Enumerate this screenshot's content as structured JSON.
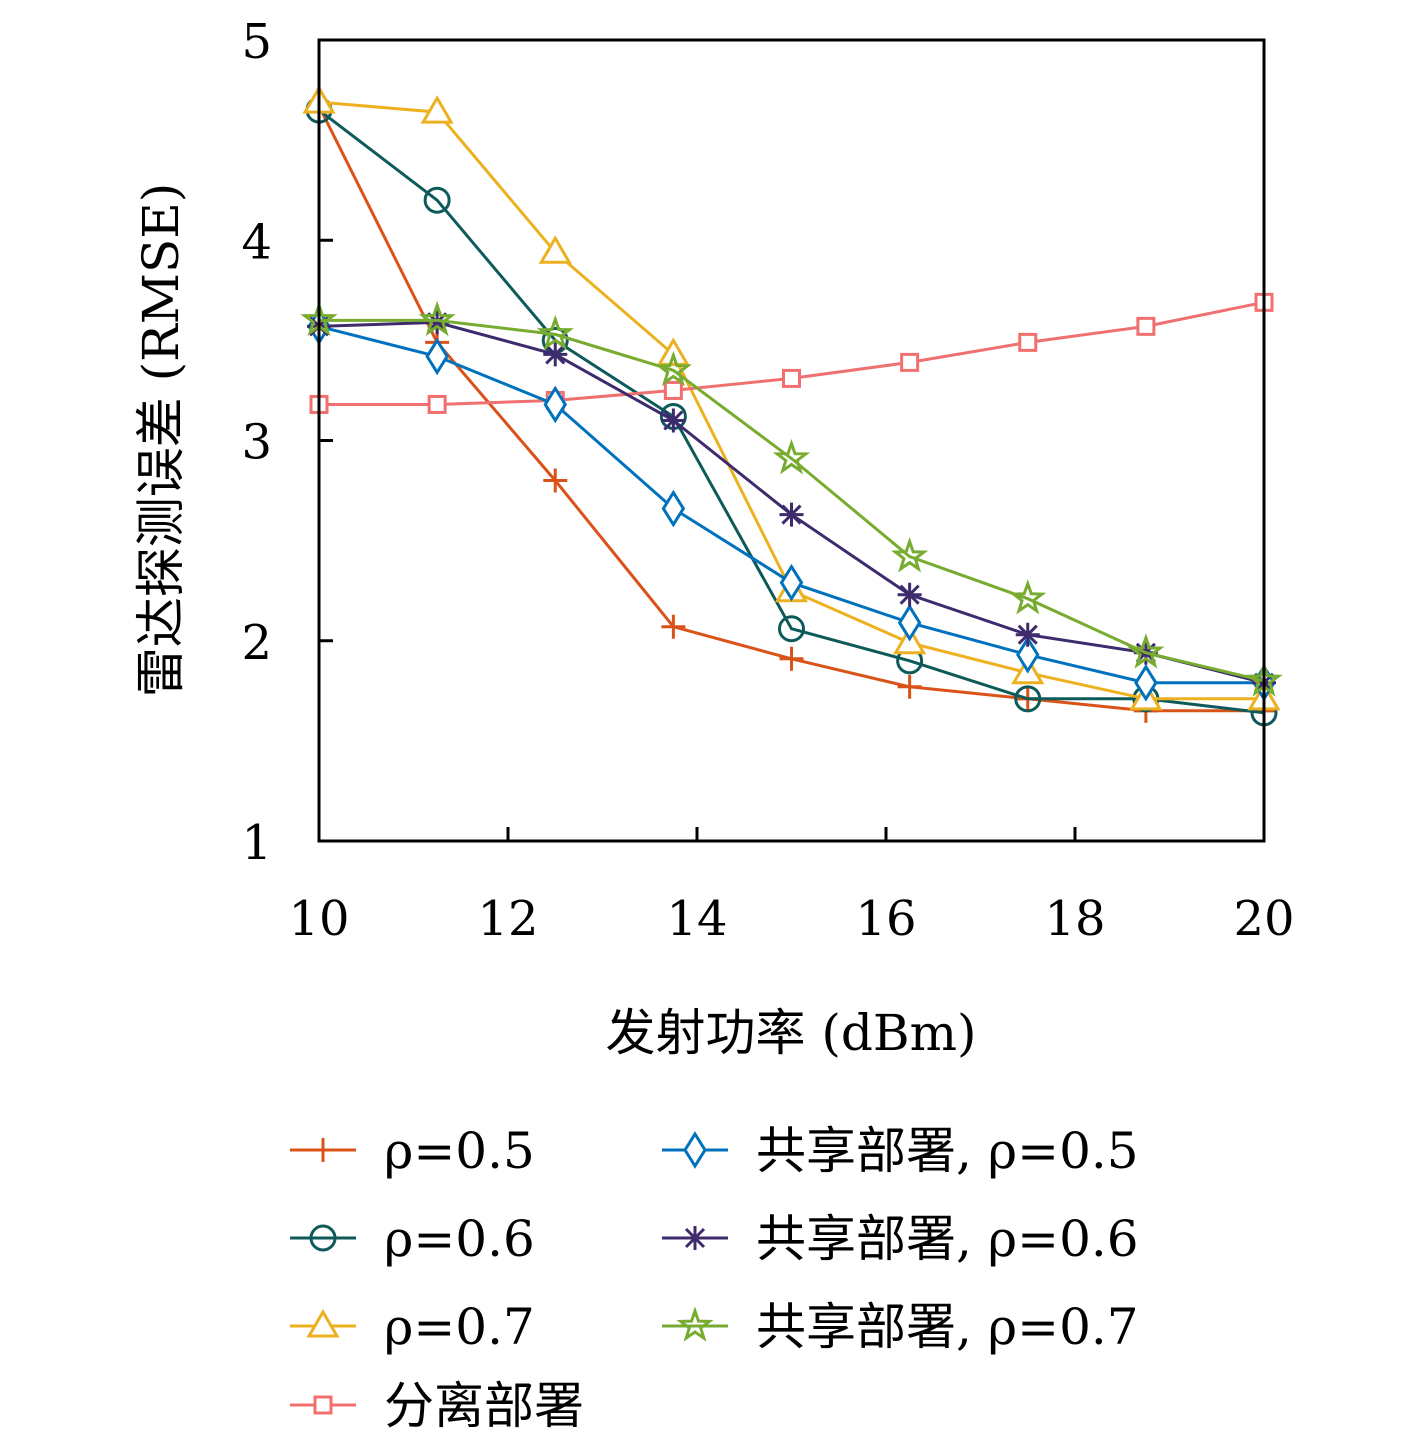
{
  "chart_data": {
    "type": "line",
    "title": "",
    "xlabel": "发射功率 (dBm)",
    "ylabel": "雷达探测误差 (RMSE)",
    "xlim": [
      10,
      20
    ],
    "ylim": [
      1,
      5
    ],
    "xticks": [
      10,
      12,
      14,
      16,
      18,
      20
    ],
    "yticks": [
      1,
      2,
      3,
      4,
      5
    ],
    "grid": false,
    "legend_placement": "bottom",
    "x": [
      10,
      11.25,
      12.5,
      13.75,
      15,
      16.25,
      17.5,
      18.75,
      20
    ],
    "series": [
      {
        "name": "ρ=0.5",
        "marker": "plus",
        "color": "#D95319",
        "values": [
          4.67,
          3.49,
          2.8,
          2.07,
          1.91,
          1.77,
          1.71,
          1.65,
          1.65
        ]
      },
      {
        "name": "ρ=0.6",
        "marker": "circle",
        "color": "#0E5A5A",
        "values": [
          4.65,
          4.2,
          3.5,
          3.12,
          2.06,
          1.9,
          1.71,
          1.71,
          1.64
        ]
      },
      {
        "name": "ρ=0.7",
        "marker": "triangle",
        "color": "#EDB120",
        "values": [
          4.69,
          4.64,
          3.94,
          3.43,
          2.25,
          1.99,
          1.84,
          1.71,
          1.71
        ]
      },
      {
        "name": "分离部署",
        "marker": "square",
        "color": "#F07070",
        "values": [
          3.18,
          3.18,
          3.2,
          3.25,
          3.31,
          3.39,
          3.49,
          3.57,
          3.69
        ]
      },
      {
        "name": "共享部署, ρ=0.5",
        "marker": "diamond",
        "color": "#0072BD",
        "values": [
          3.57,
          3.42,
          3.18,
          2.66,
          2.29,
          2.09,
          1.93,
          1.79,
          1.79
        ]
      },
      {
        "name": "共享部署, ρ=0.6",
        "marker": "asterisk",
        "color": "#3D2B6E",
        "values": [
          3.57,
          3.59,
          3.43,
          3.1,
          2.63,
          2.23,
          2.03,
          1.94,
          1.79
        ]
      },
      {
        "name": "共享部署, ρ=0.7",
        "marker": "star",
        "color": "#77AC30",
        "values": [
          3.6,
          3.6,
          3.53,
          3.35,
          2.91,
          2.42,
          2.21,
          1.94,
          1.8
        ]
      }
    ]
  }
}
